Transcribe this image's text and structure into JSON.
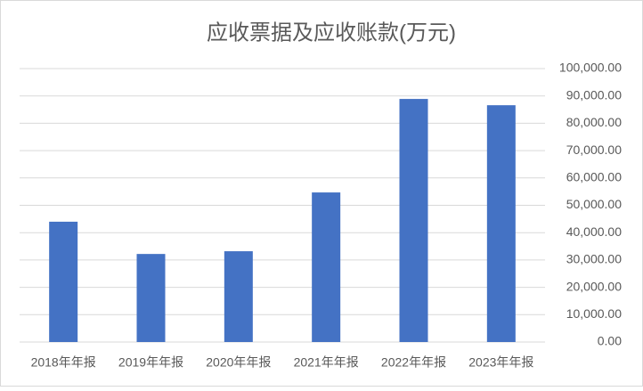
{
  "chart_data": {
    "type": "bar",
    "title": "应收票据及应收账款(万元)",
    "categories": [
      "2018年年报",
      "2019年年报",
      "2020年年报",
      "2021年年报",
      "2022年年报",
      "2023年年报"
    ],
    "values": [
      44000,
      32200,
      33200,
      54700,
      88900,
      86600
    ],
    "color": "#4472c4",
    "ylim": [
      0,
      100000
    ],
    "yticks": [
      {
        "value": 0,
        "label": "0.00"
      },
      {
        "value": 10000,
        "label": "10,000.00"
      },
      {
        "value": 20000,
        "label": "20,000.00"
      },
      {
        "value": 30000,
        "label": "30,000.00"
      },
      {
        "value": 40000,
        "label": "40,000.00"
      },
      {
        "value": 50000,
        "label": "50,000.00"
      },
      {
        "value": 60000,
        "label": "60,000.00"
      },
      {
        "value": 70000,
        "label": "70,000.00"
      },
      {
        "value": 80000,
        "label": "80,000.00"
      },
      {
        "value": 90000,
        "label": "90,000.00"
      },
      {
        "value": 100000,
        "label": "100,000.00"
      }
    ],
    "grid": true
  }
}
